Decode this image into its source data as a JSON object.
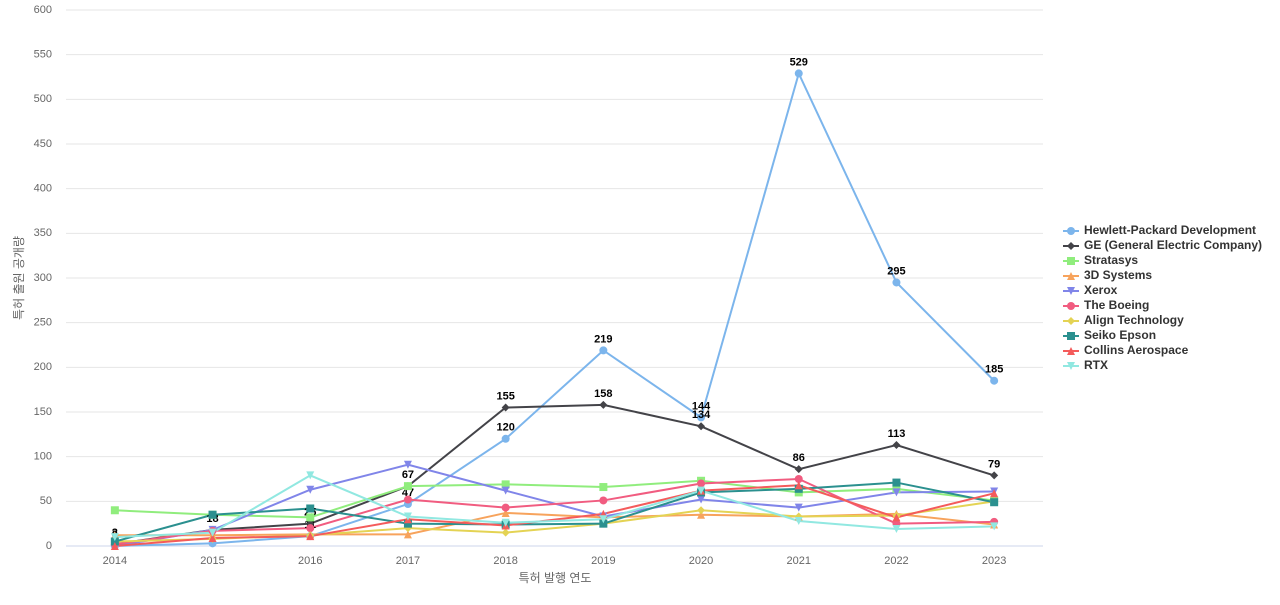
{
  "chart_data": {
    "type": "line",
    "x_label": "특허 발행 연도",
    "y_label": "특허 출원 공개량",
    "categories": [
      "2014",
      "2015",
      "2016",
      "2017",
      "2018",
      "2019",
      "2020",
      "2021",
      "2022",
      "2023"
    ],
    "ylim": [
      0,
      600
    ],
    "yticks": [
      0,
      50,
      100,
      150,
      200,
      250,
      300,
      350,
      400,
      450,
      500,
      550,
      600
    ],
    "grid": true,
    "legend": "right",
    "series": [
      {
        "name": "Hewlett-Packard Development",
        "color": "#7cb5ec",
        "marker": "circle",
        "data_labels": true,
        "values": [
          0,
          3,
          11,
          47,
          120,
          219,
          144,
          529,
          295,
          185
        ]
      },
      {
        "name": "GE (General Electric Company)",
        "color": "#434348",
        "marker": "diamond",
        "data_labels": true,
        "values": [
          2,
          18,
          25,
          67,
          155,
          158,
          134,
          86,
          113,
          79
        ]
      },
      {
        "name": "Stratasys",
        "color": "#90ed7d",
        "marker": "square",
        "data_labels": false,
        "values": [
          40,
          35,
          32,
          67,
          69,
          66,
          73,
          60,
          64,
          51
        ]
      },
      {
        "name": "3D Systems",
        "color": "#f7a35c",
        "marker": "triangle",
        "data_labels": false,
        "values": [
          12,
          12,
          13,
          13,
          37,
          32,
          35,
          33,
          36,
          24
        ]
      },
      {
        "name": "Xerox",
        "color": "#8085e9",
        "marker": "triangle-down",
        "data_labels": false,
        "values": [
          0,
          18,
          63,
          91,
          62,
          33,
          52,
          43,
          60,
          61
        ]
      },
      {
        "name": "The Boeing",
        "color": "#f15c80",
        "marker": "circle",
        "data_labels": false,
        "values": [
          2,
          17,
          20,
          52,
          43,
          51,
          70,
          75,
          25,
          27
        ]
      },
      {
        "name": "Align Technology",
        "color": "#e4d354",
        "marker": "diamond",
        "data_labels": false,
        "values": [
          5,
          8,
          12,
          20,
          15,
          25,
          40,
          33,
          34,
          50
        ]
      },
      {
        "name": "Seiko Epson",
        "color": "#2b908f",
        "marker": "square",
        "data_labels": false,
        "values": [
          5,
          35,
          42,
          25,
          24,
          25,
          60,
          64,
          71,
          49
        ]
      },
      {
        "name": "Collins Aerospace",
        "color": "#f45b5b",
        "marker": "triangle",
        "data_labels": false,
        "values": [
          0,
          9,
          11,
          30,
          23,
          36,
          62,
          68,
          32,
          59
        ]
      },
      {
        "name": "RTX",
        "color": "#91e8e1",
        "marker": "triangle-down",
        "data_labels": false,
        "values": [
          10,
          15,
          79,
          33,
          26,
          30,
          62,
          28,
          19,
          22
        ]
      }
    ]
  }
}
